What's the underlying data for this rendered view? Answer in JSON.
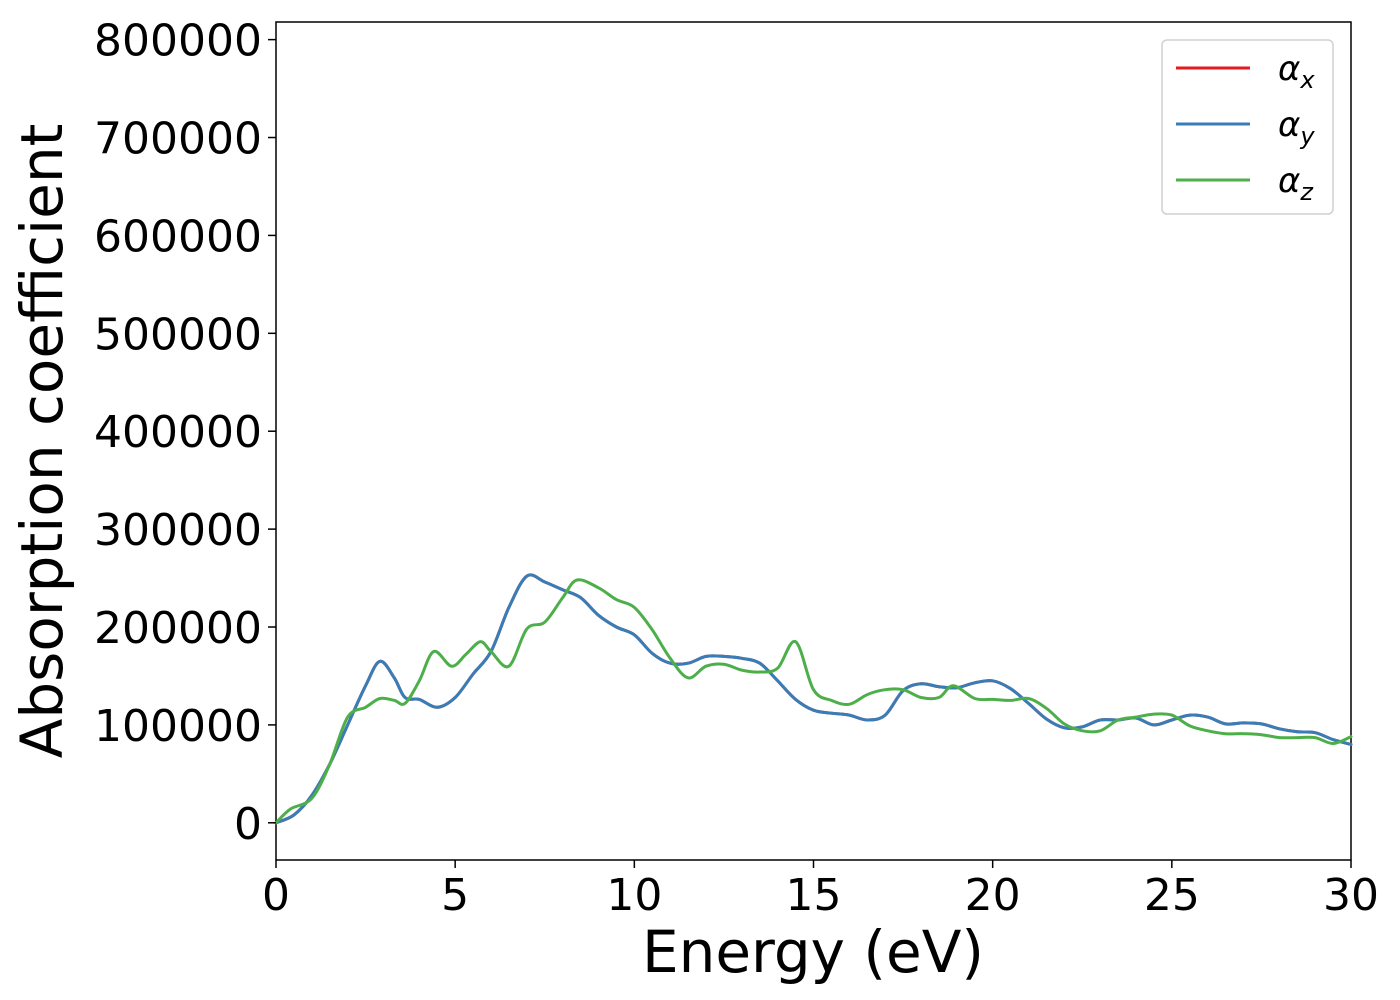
{
  "chart_data": {
    "type": "line",
    "xlabel": "Energy (eV)",
    "ylabel": "Absorption coefficient",
    "xlim": [
      0,
      30
    ],
    "ylim": [
      -38000,
      818000
    ],
    "xticks": [
      0,
      5,
      10,
      15,
      20,
      25,
      30
    ],
    "xtick_labels": [
      "0",
      "5",
      "10",
      "15",
      "20",
      "25",
      "30"
    ],
    "yticks": [
      0,
      100000,
      200000,
      300000,
      400000,
      500000,
      600000,
      700000,
      800000
    ],
    "ytick_labels": [
      "0",
      "100000",
      "200000",
      "300000",
      "400000",
      "500000",
      "600000",
      "700000",
      "800000"
    ],
    "grid": false,
    "legend_position": "top-right",
    "series": [
      {
        "name": "α",
        "subscript": "x",
        "color": "#e41a1c",
        "x": [
          0,
          0.5,
          1.0,
          1.5,
          2.0,
          2.5,
          2.9,
          3.3,
          3.6,
          4.0,
          4.5,
          5.0,
          5.5,
          6.0,
          6.5,
          7.0,
          7.5,
          8.0,
          8.5,
          9.0,
          9.5,
          10.0,
          10.5,
          11.0,
          11.5,
          12.0,
          12.5,
          13.0,
          13.5,
          14.0,
          14.5,
          15.0,
          15.5,
          16.0,
          16.5,
          17.0,
          17.5,
          18.0,
          18.5,
          19.0,
          19.5,
          20.0,
          20.5,
          21.0,
          21.5,
          22.0,
          22.5,
          23.0,
          23.5,
          24.0,
          24.5,
          25.0,
          25.5,
          26.0,
          26.5,
          27.0,
          27.5,
          28.0,
          28.5,
          29.0,
          29.5,
          30.0
        ],
        "y": [
          0,
          8000,
          28000,
          60000,
          100000,
          140000,
          165000,
          148000,
          128000,
          126000,
          118000,
          128000,
          152000,
          175000,
          220000,
          252000,
          246000,
          238000,
          230000,
          212000,
          200000,
          192000,
          173000,
          163000,
          163000,
          170000,
          170000,
          168000,
          163000,
          145000,
          126000,
          115000,
          112000,
          110000,
          105000,
          110000,
          135000,
          142000,
          139000,
          138000,
          143000,
          145000,
          137000,
          122000,
          106000,
          97000,
          98000,
          105000,
          105000,
          107000,
          100000,
          105000,
          110000,
          108000,
          101000,
          102000,
          101000,
          96000,
          93000,
          92000,
          85000,
          80000
        ]
      },
      {
        "name": "α",
        "subscript": "y",
        "color": "#377eb8",
        "x": [
          0,
          0.5,
          1.0,
          1.5,
          2.0,
          2.5,
          2.9,
          3.3,
          3.6,
          4.0,
          4.5,
          5.0,
          5.5,
          6.0,
          6.5,
          7.0,
          7.5,
          8.0,
          8.5,
          9.0,
          9.5,
          10.0,
          10.5,
          11.0,
          11.5,
          12.0,
          12.5,
          13.0,
          13.5,
          14.0,
          14.5,
          15.0,
          15.5,
          16.0,
          16.5,
          17.0,
          17.5,
          18.0,
          18.5,
          19.0,
          19.5,
          20.0,
          20.5,
          21.0,
          21.5,
          22.0,
          22.5,
          23.0,
          23.5,
          24.0,
          24.5,
          25.0,
          25.5,
          26.0,
          26.5,
          27.0,
          27.5,
          28.0,
          28.5,
          29.0,
          29.5,
          30.0
        ],
        "y": [
          0,
          8000,
          28000,
          60000,
          100000,
          140000,
          165000,
          148000,
          128000,
          126000,
          118000,
          128000,
          152000,
          175000,
          220000,
          252000,
          246000,
          238000,
          230000,
          212000,
          200000,
          192000,
          173000,
          163000,
          163000,
          170000,
          170000,
          168000,
          163000,
          145000,
          126000,
          115000,
          112000,
          110000,
          105000,
          110000,
          135000,
          142000,
          139000,
          138000,
          143000,
          145000,
          137000,
          122000,
          106000,
          97000,
          98000,
          105000,
          105000,
          107000,
          100000,
          105000,
          110000,
          108000,
          101000,
          102000,
          101000,
          96000,
          93000,
          92000,
          85000,
          80000
        ]
      },
      {
        "name": "α",
        "subscript": "z",
        "color": "#4daf4a",
        "x": [
          0,
          0.4,
          1.0,
          1.5,
          2.0,
          2.5,
          2.9,
          3.3,
          3.6,
          4.0,
          4.4,
          4.9,
          5.3,
          5.7,
          6.0,
          6.5,
          7.0,
          7.5,
          8.0,
          8.4,
          9.0,
          9.5,
          10.0,
          10.5,
          11.0,
          11.5,
          12.0,
          12.5,
          13.0,
          13.5,
          14.0,
          14.5,
          15.0,
          15.5,
          16.0,
          16.5,
          17.0,
          17.5,
          18.0,
          18.5,
          18.9,
          19.5,
          20.0,
          20.5,
          21.0,
          21.5,
          22.0,
          22.5,
          23.0,
          23.5,
          24.0,
          24.5,
          25.0,
          25.5,
          26.0,
          26.5,
          27.0,
          27.5,
          28.0,
          28.5,
          29.0,
          29.5,
          30.0
        ],
        "y": [
          0,
          14000,
          25000,
          60000,
          108000,
          118000,
          127000,
          125000,
          122000,
          145000,
          175000,
          160000,
          172000,
          185000,
          175000,
          160000,
          198000,
          205000,
          230000,
          248000,
          240000,
          228000,
          220000,
          197000,
          168000,
          148000,
          160000,
          162000,
          156000,
          154000,
          158000,
          185000,
          136000,
          125000,
          121000,
          131000,
          136000,
          136000,
          128000,
          128000,
          140000,
          127000,
          126000,
          125000,
          127000,
          117000,
          101000,
          94000,
          94000,
          105000,
          108000,
          111000,
          110000,
          99000,
          94000,
          91000,
          91000,
          90000,
          87000,
          87000,
          87000,
          81000,
          88000
        ]
      }
    ]
  }
}
